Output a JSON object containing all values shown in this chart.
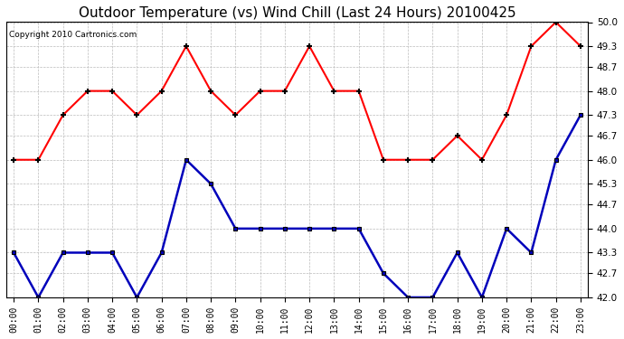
{
  "title": "Outdoor Temperature (vs) Wind Chill (Last 24 Hours) 20100425",
  "copyright": "Copyright 2010 Cartronics.com",
  "hours": [
    "00:00",
    "01:00",
    "02:00",
    "03:00",
    "04:00",
    "05:00",
    "06:00",
    "07:00",
    "08:00",
    "09:00",
    "10:00",
    "11:00",
    "12:00",
    "13:00",
    "14:00",
    "15:00",
    "16:00",
    "17:00",
    "18:00",
    "19:00",
    "20:00",
    "21:00",
    "22:00",
    "23:00"
  ],
  "outdoor_temp": [
    46.0,
    46.0,
    47.3,
    48.0,
    48.0,
    47.3,
    48.0,
    49.3,
    48.0,
    47.3,
    48.0,
    48.0,
    49.3,
    48.0,
    48.0,
    46.0,
    46.0,
    46.0,
    46.7,
    46.0,
    47.3,
    49.3,
    50.0,
    49.3
  ],
  "wind_chill": [
    43.3,
    42.0,
    43.3,
    43.3,
    43.3,
    42.0,
    43.3,
    46.0,
    45.3,
    44.0,
    44.0,
    44.0,
    44.0,
    44.0,
    44.0,
    42.7,
    42.0,
    42.0,
    43.3,
    42.0,
    44.0,
    43.3,
    46.0,
    47.3
  ],
  "ylim": [
    42.0,
    50.0
  ],
  "yticks": [
    42.0,
    42.7,
    43.3,
    44.0,
    44.7,
    45.3,
    46.0,
    46.7,
    47.3,
    48.0,
    48.7,
    49.3,
    50.0
  ],
  "temp_color": "#ff0000",
  "wind_chill_color": "#0000bb",
  "background_color": "#ffffff",
  "grid_color": "#bbbbbb",
  "title_fontsize": 11,
  "copyright_fontsize": 6.5
}
